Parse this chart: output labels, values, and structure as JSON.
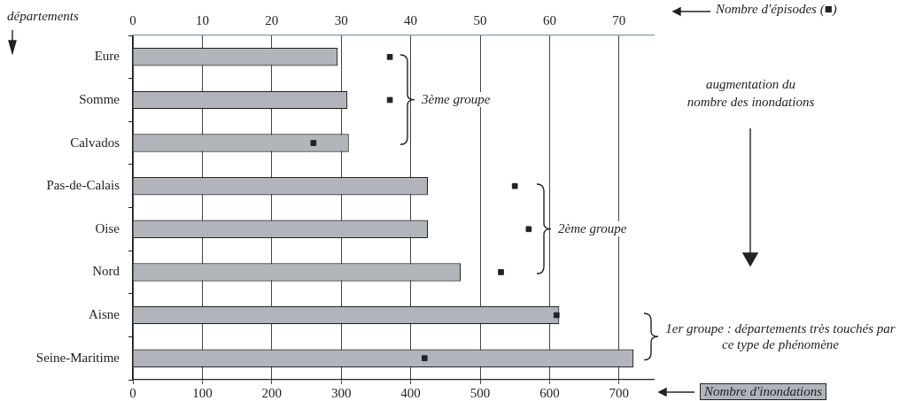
{
  "chart_data": {
    "type": "bar",
    "orientation": "horizontal",
    "ylabel": "départements",
    "xlabel": "Nombre d'inondations",
    "x2label": "Nombre d'épisodes (■)",
    "categories": [
      "Eure",
      "Somme",
      "Calvados",
      "Pas-de-Calais",
      "Oise",
      "Nord",
      "Aisne",
      "Seine-Maritime"
    ],
    "series": [
      {
        "type": "bar",
        "color": "#b1b5bb",
        "values": [
          295,
          309,
          311,
          425,
          425,
          472,
          614,
          721
        ]
      },
      {
        "type": "scatter",
        "axis": "x2",
        "color": "#222222",
        "marker": "square",
        "values": [
          37,
          37,
          26,
          55,
          57,
          53,
          61,
          42
        ]
      }
    ],
    "xlim": [
      0,
      750
    ],
    "xticks": [
      0,
      100,
      200,
      300,
      400,
      500,
      600,
      700
    ],
    "x2lim": [
      0,
      75
    ],
    "x2ticks": [
      0,
      10,
      20,
      30,
      40,
      50,
      60,
      70
    ],
    "grid": "x",
    "legend": false,
    "annotations": [
      "3ème groupe",
      "2ème groupe",
      "1er groupe : départements très touchés par ce type de phénomène",
      "augmentation du nombre des inondations"
    ]
  }
}
